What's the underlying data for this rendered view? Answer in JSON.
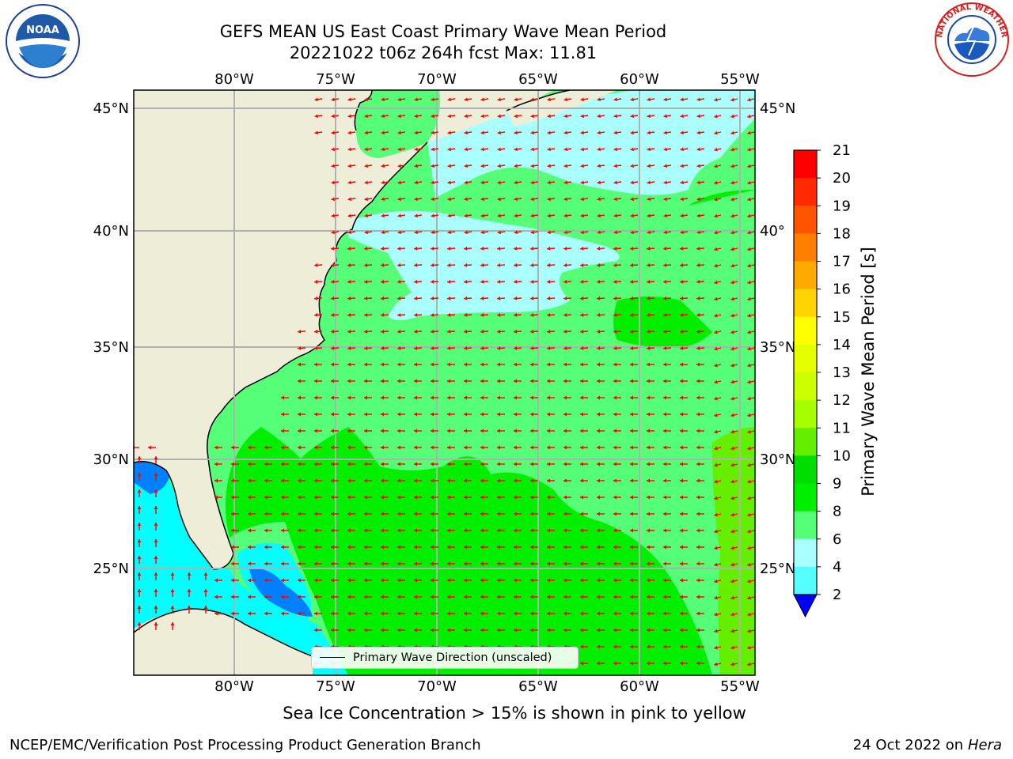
{
  "title": {
    "line1": "GEFS MEAN US East Coast Primary Wave Mean Period",
    "line2": "20221022 t06z 264h fcst   Max: 11.81"
  },
  "map": {
    "lon_ticks": [
      "80°W",
      "75°W",
      "70°W",
      "65°W",
      "60°W",
      "55°W"
    ],
    "lat_ticks_left": [
      "45°N",
      "40°N",
      "35°N",
      "30°N",
      "25°N"
    ],
    "lat_ticks_right": [
      "45°N",
      "40°",
      "35°N",
      "30°N",
      "25°N"
    ]
  },
  "legend": {
    "label": "Primary Wave Direction (unscaled)"
  },
  "colorbar": {
    "label": "Primary Wave Mean Period [s]",
    "ticks": [
      "21",
      "20",
      "19",
      "18",
      "17",
      "16",
      "15",
      "14",
      "13",
      "12",
      "11",
      "10",
      "9",
      "8",
      "6",
      "4",
      "2"
    ],
    "colors": [
      "#ff0000",
      "#ff2a00",
      "#ff5500",
      "#ff8000",
      "#ffaa00",
      "#ffd400",
      "#ffff00",
      "#e6ff00",
      "#ccff00",
      "#a5ff00",
      "#66ee00",
      "#00dd00",
      "#00ee00",
      "#55ff77",
      "#aaffff",
      "#55ffff",
      "#00ffff",
      "#0080ff",
      "#0000ff"
    ]
  },
  "subtitle": "Sea Ice Concentration > 15% is shown in pink to yellow",
  "credit": "NCEP/EMC/Verification Post Processing Product Generation Branch",
  "date": {
    "text": "24 Oct 2022 on ",
    "host": "Hera"
  },
  "logos": {
    "left": "NOAA",
    "right": "NATIONAL WEATHER SERVICE"
  }
}
